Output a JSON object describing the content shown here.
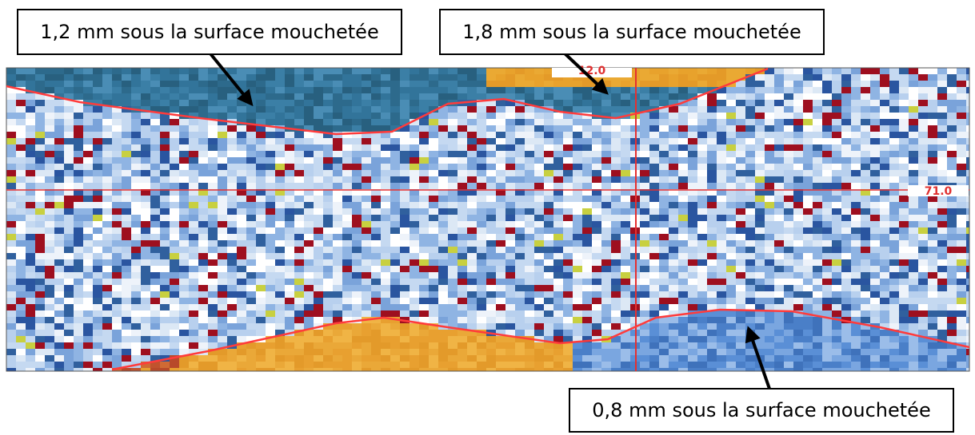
{
  "annotations": [
    {
      "label": "1,2 mm sous la surface mouchetée"
    },
    {
      "label": "1,8 mm sous la surface mouchetée"
    },
    {
      "label": "0,8 mm sous la surface mouchetée"
    }
  ],
  "scan_labels": [
    "12.0",
    "71.0"
  ]
}
